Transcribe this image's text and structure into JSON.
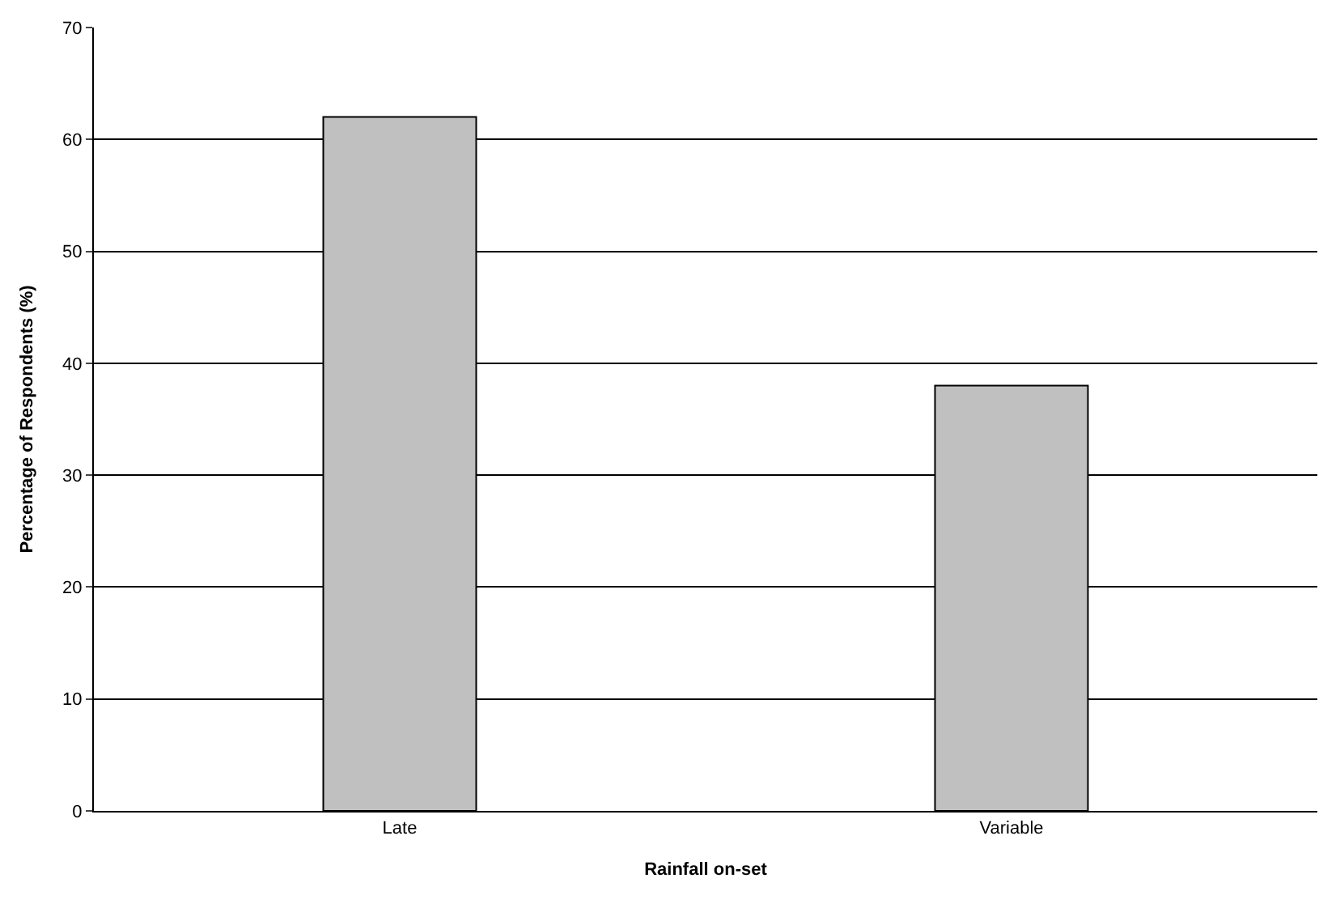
{
  "chart_data": {
    "type": "bar",
    "xlabel": "Rainfall on-set",
    "ylabel": "Percentage of Respondents (%)",
    "categories": [
      "Late",
      "Variable"
    ],
    "values": [
      62,
      38
    ],
    "color": "#c0c0c0",
    "ylim": [
      0,
      70
    ],
    "yticks": [
      0,
      10,
      20,
      30,
      40,
      50,
      60,
      70
    ],
    "grid": "y"
  }
}
